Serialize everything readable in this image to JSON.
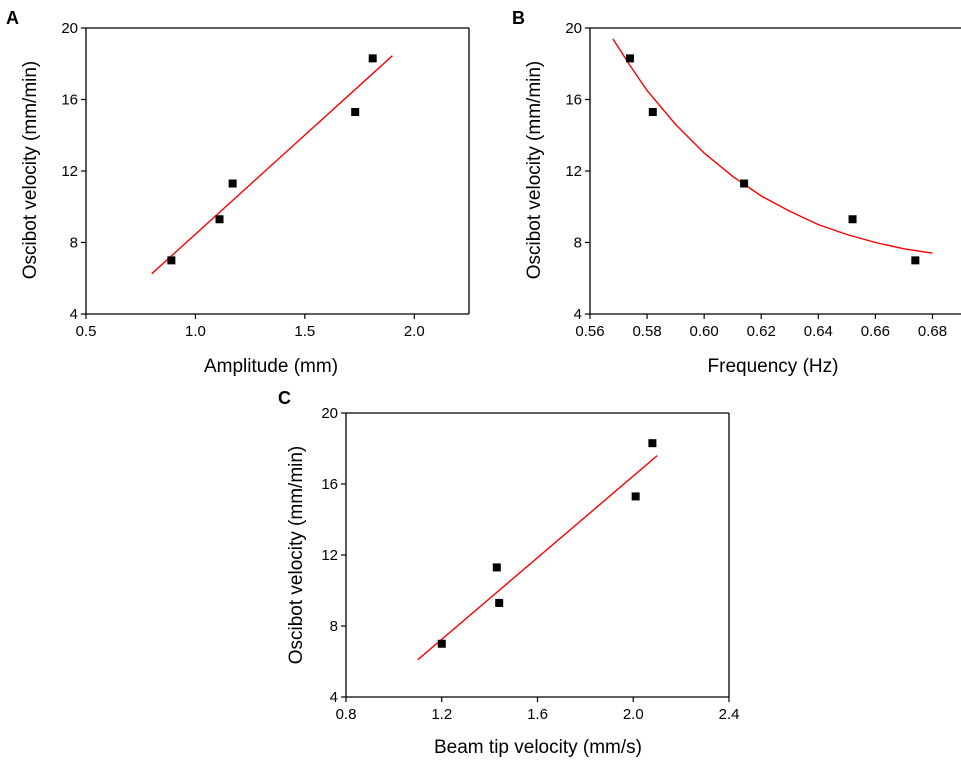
{
  "chart_data": [
    {
      "panel": "A",
      "type": "scatter",
      "xlabel": "Amplitude (mm)",
      "ylabel": "Oscibot velocity (mm/min)",
      "xlim": [
        0.5,
        2.25
      ],
      "ylim": [
        4,
        20
      ],
      "xticks": [
        "0.5",
        "1.0",
        "1.5",
        "2.0"
      ],
      "yticks": [
        "4",
        "8",
        "12",
        "16",
        "20"
      ],
      "points": [
        {
          "x": 0.89,
          "y": 7.0
        },
        {
          "x": 1.11,
          "y": 9.3
        },
        {
          "x": 1.17,
          "y": 11.3
        },
        {
          "x": 1.73,
          "y": 15.3
        },
        {
          "x": 1.81,
          "y": 18.3
        }
      ],
      "fit": {
        "type": "linear",
        "points": [
          {
            "x": 0.8,
            "y": 6.25
          },
          {
            "x": 1.9,
            "y": 18.45
          }
        ]
      },
      "marker_color": "#000000",
      "fit_color": "#ff0000",
      "grid": false
    },
    {
      "panel": "B",
      "type": "scatter",
      "xlabel": "Frequency (Hz)",
      "ylabel": "Oscibot velocity (mm/min)",
      "xlim": [
        0.56,
        0.69
      ],
      "ylim": [
        4,
        20
      ],
      "xticks": [
        "0.56",
        "0.58",
        "0.60",
        "0.62",
        "0.64",
        "0.66",
        "0.68"
      ],
      "yticks": [
        "4",
        "8",
        "12",
        "16",
        "20"
      ],
      "points": [
        {
          "x": 0.574,
          "y": 18.3
        },
        {
          "x": 0.582,
          "y": 15.3
        },
        {
          "x": 0.614,
          "y": 11.3
        },
        {
          "x": 0.652,
          "y": 9.3
        },
        {
          "x": 0.674,
          "y": 7.0
        }
      ],
      "fit": {
        "type": "decay",
        "points": [
          {
            "x": 0.568,
            "y": 19.4
          },
          {
            "x": 0.574,
            "y": 17.9
          },
          {
            "x": 0.58,
            "y": 16.5
          },
          {
            "x": 0.59,
            "y": 14.6
          },
          {
            "x": 0.6,
            "y": 13.0
          },
          {
            "x": 0.61,
            "y": 11.7
          },
          {
            "x": 0.62,
            "y": 10.6
          },
          {
            "x": 0.63,
            "y": 9.75
          },
          {
            "x": 0.64,
            "y": 9.0
          },
          {
            "x": 0.65,
            "y": 8.45
          },
          {
            "x": 0.66,
            "y": 8.0
          },
          {
            "x": 0.67,
            "y": 7.65
          },
          {
            "x": 0.68,
            "y": 7.4
          }
        ]
      },
      "marker_color": "#000000",
      "fit_color": "#ff0000",
      "grid": false
    },
    {
      "panel": "C",
      "type": "scatter",
      "xlabel": "Beam tip velocity (mm/s)",
      "ylabel": "Oscibot velocity (mm/min)",
      "xlim": [
        0.8,
        2.4
      ],
      "ylim": [
        4,
        20
      ],
      "xticks": [
        "0.8",
        "1.2",
        "1.6",
        "2.0",
        "2.4"
      ],
      "yticks": [
        "4",
        "8",
        "12",
        "16",
        "20"
      ],
      "points": [
        {
          "x": 1.2,
          "y": 7.0
        },
        {
          "x": 1.44,
          "y": 9.3
        },
        {
          "x": 1.43,
          "y": 11.3
        },
        {
          "x": 2.01,
          "y": 15.3
        },
        {
          "x": 2.08,
          "y": 18.3
        }
      ],
      "fit": {
        "type": "linear",
        "points": [
          {
            "x": 1.1,
            "y": 6.1
          },
          {
            "x": 2.1,
            "y": 17.6
          }
        ]
      },
      "marker_color": "#000000",
      "fit_color": "#ff0000",
      "grid": false
    }
  ]
}
